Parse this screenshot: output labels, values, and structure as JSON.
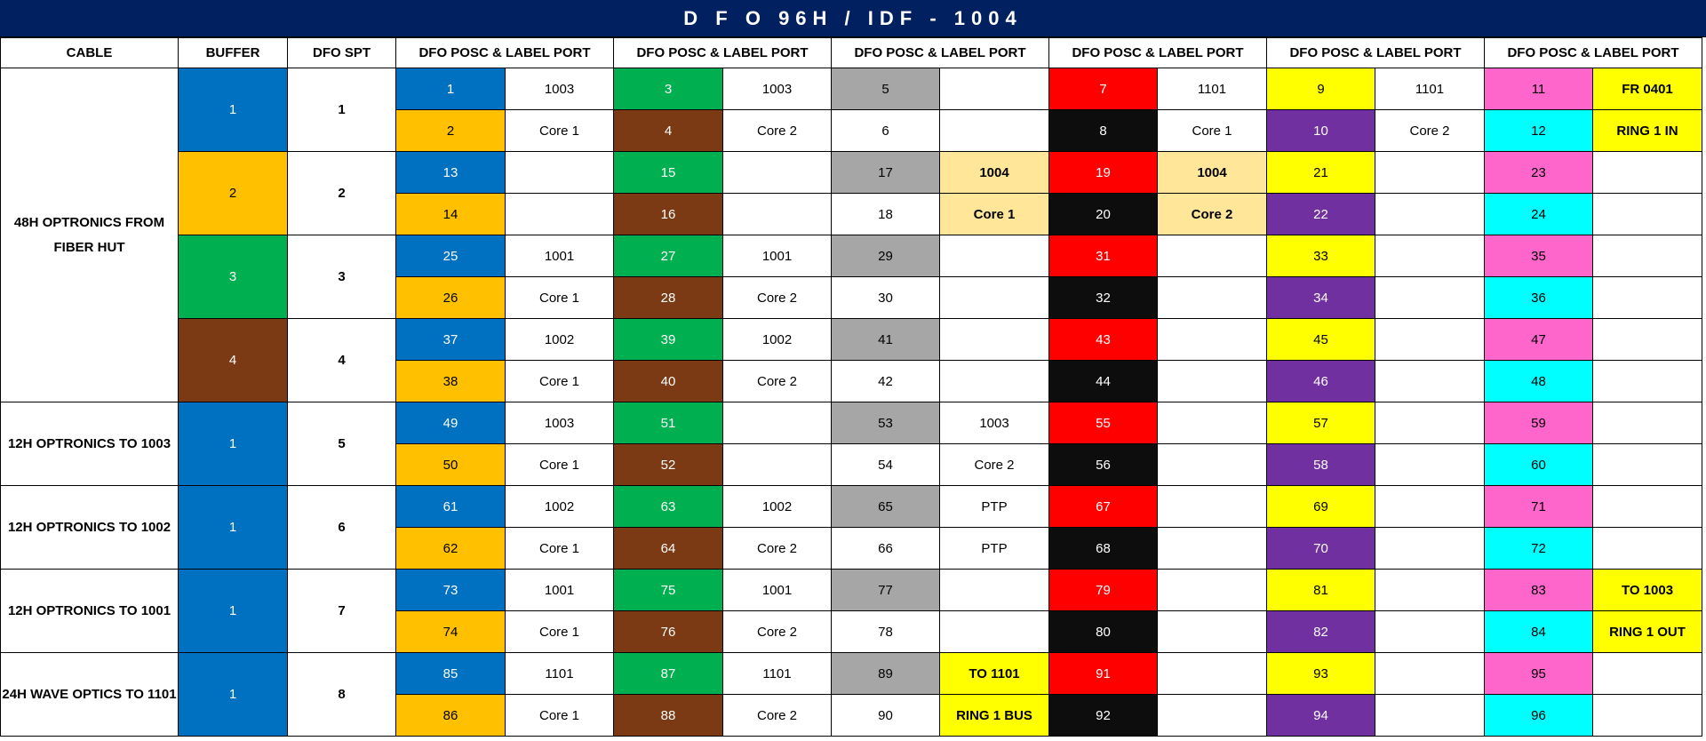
{
  "title": "D F O 96H / IDF  -  1004",
  "colors": {
    "header_bg": "#002060",
    "blue": "#0070c0",
    "orange": "#ffc000",
    "green": "#00b050",
    "brown": "#7b3a14",
    "grey": "#a6a6a6",
    "white": "#ffffff",
    "red": "#ff0000",
    "black": "#0d0d0d",
    "yellow": "#ffff00",
    "violet": "#7030a0",
    "pink": "#ff66cc",
    "cyan": "#00ffff",
    "tan": "#ffe699"
  },
  "headers": [
    "CABLE",
    "BUFFER",
    "DFO SPT",
    "DFO POSC & LABEL PORT",
    "DFO POSC & LABEL PORT",
    "DFO POSC & LABEL PORT",
    "DFO POSC & LABEL PORT",
    "DFO POSC & LABEL PORT",
    "DFO POSC & LABEL PORT"
  ],
  "position_colors": [
    [
      "blue",
      "orange"
    ],
    [
      "green",
      "brown"
    ],
    [
      "grey",
      "white"
    ],
    [
      "red",
      "black"
    ],
    [
      "yellow",
      "violet"
    ],
    [
      "pink",
      "cyan"
    ]
  ],
  "cables": [
    {
      "label": "48H OPTRONICS FROM FIBER HUT",
      "rows": 8
    },
    {
      "label": "12H OPTRONICS TO 1003",
      "rows": 2
    },
    {
      "label": "12H OPTRONICS TO 1002",
      "rows": 2
    },
    {
      "label": "12H OPTRONICS TO 1001",
      "rows": 2
    },
    {
      "label": "24H WAVE OPTICS TO 1101",
      "rows": 2
    }
  ],
  "buffers": [
    {
      "label": "1",
      "color": "blue"
    },
    {
      "label": "2",
      "color": "orange"
    },
    {
      "label": "3",
      "color": "green"
    },
    {
      "label": "4",
      "color": "brown"
    },
    {
      "label": "1",
      "color": "blue"
    },
    {
      "label": "1",
      "color": "blue"
    },
    {
      "label": "1",
      "color": "blue"
    },
    {
      "label": "1",
      "color": "blue"
    }
  ],
  "spts": [
    "1",
    "2",
    "3",
    "4",
    "5",
    "6",
    "7",
    "8"
  ],
  "labels": [
    [
      [
        {
          "t": "1003"
        },
        {
          "t": "Core 1"
        }
      ],
      [
        {
          "t": "1003"
        },
        {
          "t": "Core 2"
        }
      ],
      [
        {
          "t": ""
        },
        {
          "t": ""
        }
      ],
      [
        {
          "t": "1101"
        },
        {
          "t": "Core 1"
        }
      ],
      [
        {
          "t": "1101"
        },
        {
          "t": "Core 2"
        }
      ],
      [
        {
          "t": "FR 0401",
          "c": "yellow",
          "b": true
        },
        {
          "t": "RING 1 IN",
          "c": "yellow",
          "b": true
        }
      ]
    ],
    [
      [
        {
          "t": ""
        },
        {
          "t": ""
        }
      ],
      [
        {
          "t": ""
        },
        {
          "t": ""
        }
      ],
      [
        {
          "t": "1004",
          "c": "tan",
          "b": true
        },
        {
          "t": "Core 1",
          "c": "tan",
          "b": true
        }
      ],
      [
        {
          "t": "1004",
          "c": "tan",
          "b": true
        },
        {
          "t": "Core 2",
          "c": "tan",
          "b": true
        }
      ],
      [
        {
          "t": ""
        },
        {
          "t": ""
        }
      ],
      [
        {
          "t": ""
        },
        {
          "t": ""
        }
      ]
    ],
    [
      [
        {
          "t": "1001"
        },
        {
          "t": "Core 1"
        }
      ],
      [
        {
          "t": "1001"
        },
        {
          "t": "Core 2"
        }
      ],
      [
        {
          "t": ""
        },
        {
          "t": ""
        }
      ],
      [
        {
          "t": ""
        },
        {
          "t": ""
        }
      ],
      [
        {
          "t": ""
        },
        {
          "t": ""
        }
      ],
      [
        {
          "t": ""
        },
        {
          "t": ""
        }
      ]
    ],
    [
      [
        {
          "t": "1002"
        },
        {
          "t": "Core 1"
        }
      ],
      [
        {
          "t": "1002"
        },
        {
          "t": "Core 2"
        }
      ],
      [
        {
          "t": ""
        },
        {
          "t": ""
        }
      ],
      [
        {
          "t": ""
        },
        {
          "t": ""
        }
      ],
      [
        {
          "t": ""
        },
        {
          "t": ""
        }
      ],
      [
        {
          "t": ""
        },
        {
          "t": ""
        }
      ]
    ],
    [
      [
        {
          "t": "1003"
        },
        {
          "t": "Core 1"
        }
      ],
      [
        {
          "t": ""
        },
        {
          "t": ""
        }
      ],
      [
        {
          "t": "1003"
        },
        {
          "t": "Core 2"
        }
      ],
      [
        {
          "t": ""
        },
        {
          "t": ""
        }
      ],
      [
        {
          "t": ""
        },
        {
          "t": ""
        }
      ],
      [
        {
          "t": ""
        },
        {
          "t": ""
        }
      ]
    ],
    [
      [
        {
          "t": "1002"
        },
        {
          "t": "Core 1"
        }
      ],
      [
        {
          "t": "1002"
        },
        {
          "t": "Core 2"
        }
      ],
      [
        {
          "t": "PTP"
        },
        {
          "t": "PTP"
        }
      ],
      [
        {
          "t": ""
        },
        {
          "t": ""
        }
      ],
      [
        {
          "t": ""
        },
        {
          "t": ""
        }
      ],
      [
        {
          "t": ""
        },
        {
          "t": ""
        }
      ]
    ],
    [
      [
        {
          "t": "1001"
        },
        {
          "t": "Core 1"
        }
      ],
      [
        {
          "t": "1001"
        },
        {
          "t": "Core 2"
        }
      ],
      [
        {
          "t": ""
        },
        {
          "t": ""
        }
      ],
      [
        {
          "t": ""
        },
        {
          "t": ""
        }
      ],
      [
        {
          "t": ""
        },
        {
          "t": ""
        }
      ],
      [
        {
          "t": "TO 1003",
          "c": "yellow",
          "b": true
        },
        {
          "t": "RING 1 OUT",
          "c": "yellow",
          "b": true
        }
      ]
    ],
    [
      [
        {
          "t": "1101"
        },
        {
          "t": "Core 1"
        }
      ],
      [
        {
          "t": "1101"
        },
        {
          "t": "Core 2"
        }
      ],
      [
        {
          "t": "TO 1101",
          "c": "yellow",
          "b": true
        },
        {
          "t": "RING 1 BUS",
          "c": "yellow",
          "b": true
        }
      ],
      [
        {
          "t": ""
        },
        {
          "t": ""
        }
      ],
      [
        {
          "t": ""
        },
        {
          "t": ""
        }
      ],
      [
        {
          "t": ""
        },
        {
          "t": ""
        }
      ]
    ]
  ]
}
